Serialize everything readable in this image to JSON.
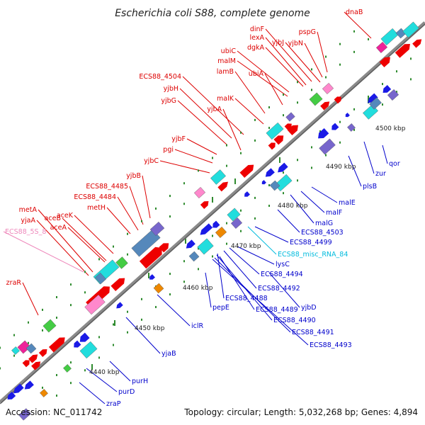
{
  "title": "Escherichia coli S88, complete genome",
  "footer": {
    "accession": "Accession: NC_011742",
    "summary": "Topology: circular; Length: 5,032,268 bp; Genes: 4,894"
  },
  "colors": {
    "backbone": "#8a8a8a",
    "ticks": "#2e8b2e",
    "forward_label": "#dd0000",
    "reverse_label": "#0000cc",
    "rrna_label": "#ee88bb",
    "ncrna_label": "#00bbdd",
    "cds_forward": "#ee0000",
    "cds_reverse": "#1a1ae6",
    "orf_cyan": "#22dddd",
    "orf_steel": "#5588bb",
    "orf_purple": "#7766cc",
    "orf_green": "#44cc44",
    "orf_pink": "#ff88cc",
    "orf_orange": "#ee8800",
    "orf_magenta": "#ee2299"
  },
  "kbp_labels": [
    "4440 kbp",
    "4450 kbp",
    "4460 kbp",
    "4470 kbp",
    "4480 kbp",
    "4490 kbp",
    "4500 kbp"
  ],
  "forward_genes": [
    "dnaB",
    "pspG",
    "dinF",
    "yjbJ",
    "lexA",
    "yjbN",
    "dgkA",
    "ubiC",
    "malM",
    "ubiA",
    "lamB",
    "ECS88_4504",
    "yjbH",
    "malK",
    "yjbG",
    "yjbA",
    "yjbF",
    "pgi",
    "yjbC",
    "yjbB",
    "ECS88_4485",
    "ECS88_4484",
    "metH",
    "metA",
    "aceB",
    "aceK",
    "yjaA",
    "aceA",
    "zraR"
  ],
  "rrna_genes": [
    "ECS88_5S_8"
  ],
  "ncrna_genes": [
    "ECS88_misc_RNA_84"
  ],
  "reverse_genes": [
    "qor",
    "zur",
    "plsB",
    "malE",
    "malF",
    "malG",
    "ECS88_4503",
    "ECS88_4499",
    "lysC",
    "ECS88_4494",
    "ECS88_4492",
    "pepE",
    "ECS88_4488",
    "yjbD",
    "ECS88_4489",
    "ECS88_4490",
    "ECS88_4491",
    "ECS88_4493",
    "iclR",
    "yjaB",
    "purH",
    "purD",
    "zraP"
  ]
}
